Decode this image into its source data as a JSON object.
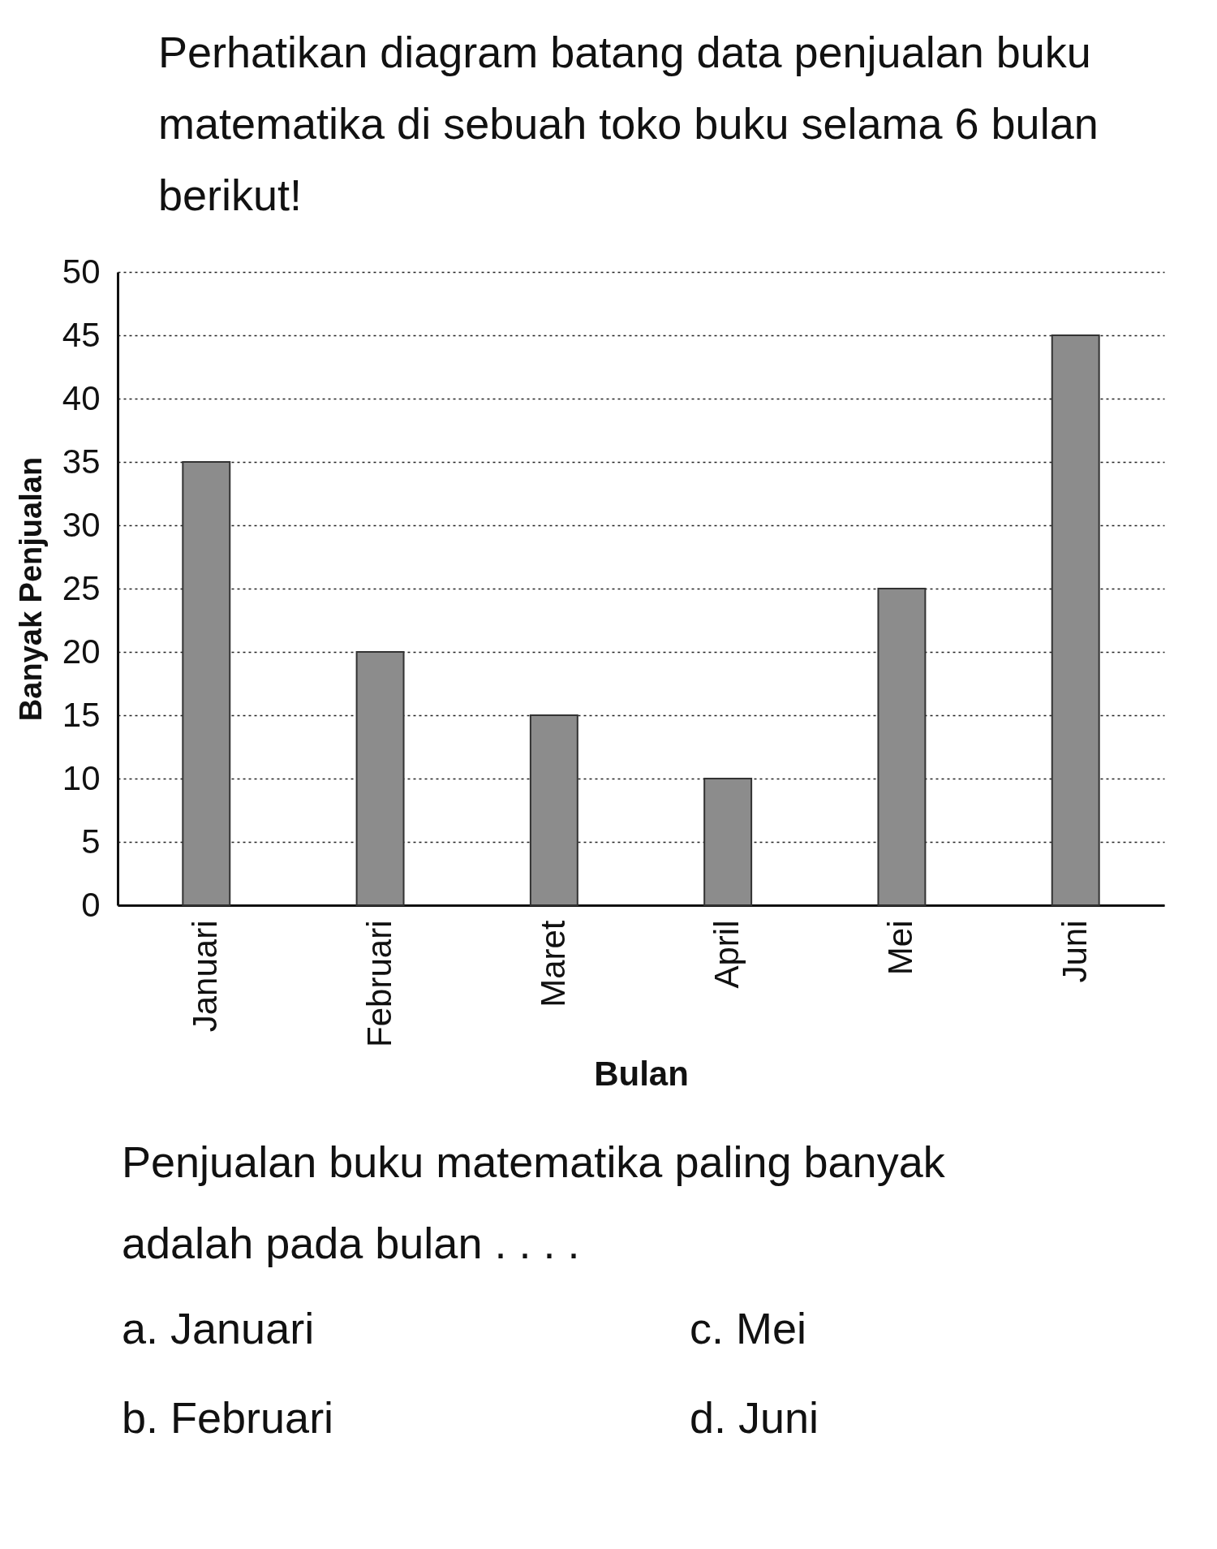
{
  "chart_data": {
    "type": "bar",
    "title": "Perhatikan diagram batang data penjualan buku matematika di sebuah toko buku selama 6 bulan berikut!",
    "xlabel": "Bulan",
    "ylabel": "Banyak Penjualan",
    "categories": [
      "Januari",
      "Februari",
      "Maret",
      "April",
      "Mei",
      "Juni"
    ],
    "values": [
      35,
      20,
      15,
      10,
      25,
      45
    ],
    "color": "#8c8c8c",
    "ylim": [
      0,
      50
    ],
    "yticks": [
      0,
      5,
      10,
      15,
      20,
      25,
      30,
      35,
      40,
      45,
      50
    ],
    "grid": "y",
    "annotations": [
      "Penjualan buku matematika paling banyak adalah pada bulan . . . .",
      "a. Januari",
      "c. Mei",
      "b. Februari",
      "d. Juni"
    ]
  }
}
